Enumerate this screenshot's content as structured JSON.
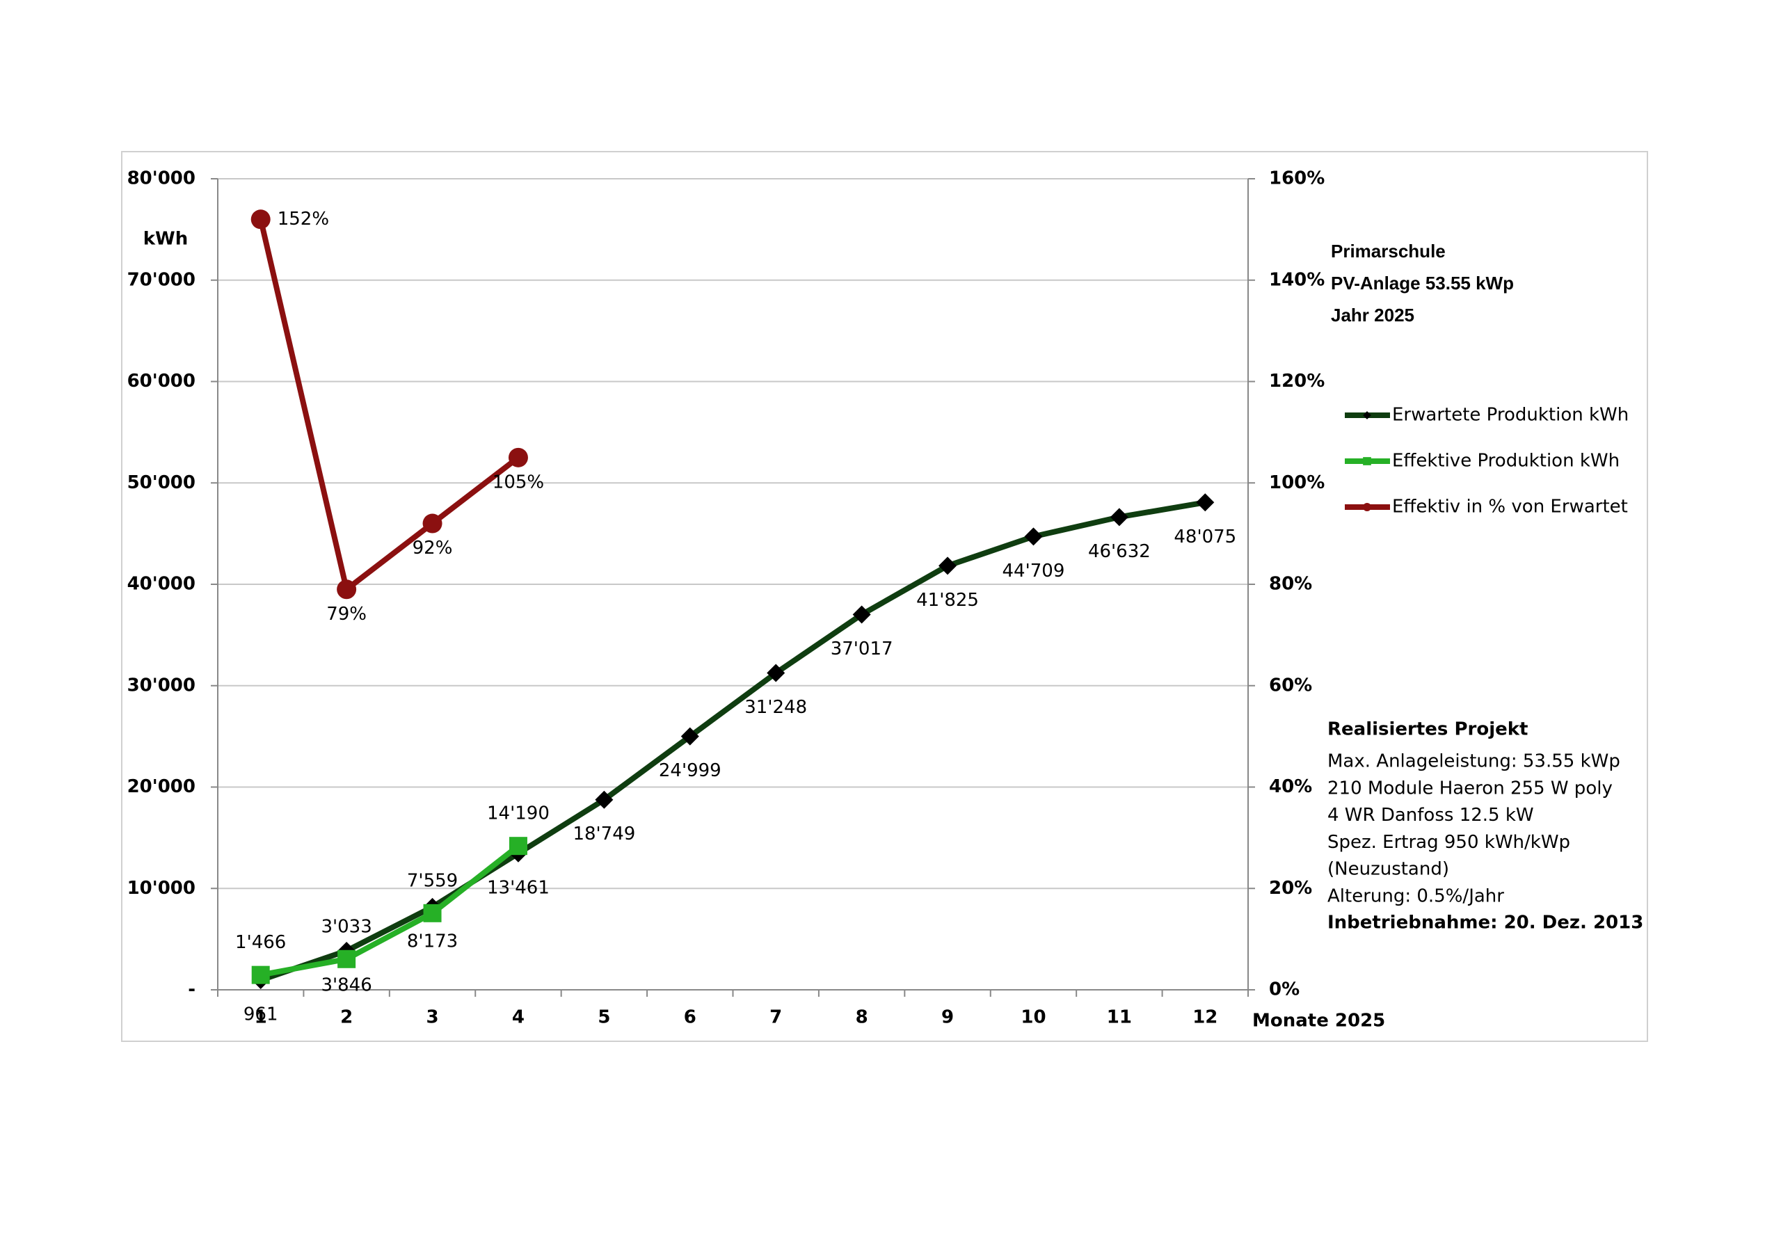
{
  "chart_data": {
    "type": "line",
    "title": [
      "Primarschule",
      "PV-Anlage 53.55 kWp",
      "Jahr 2025"
    ],
    "y_label": "kWh",
    "x_label": "Monate 2025",
    "categories": [
      1,
      2,
      3,
      4,
      5,
      6,
      7,
      8,
      9,
      10,
      11,
      12
    ],
    "series": [
      {
        "name": "Erwartete Produktion kWh",
        "color": "#0f3d10",
        "marker_color": "#000000",
        "marker": "diamond",
        "values": [
          961,
          3846,
          8173,
          13461,
          18749,
          24999,
          31248,
          37017,
          41825,
          44709,
          46632,
          48075
        ],
        "value_labels": [
          "961",
          "3'846",
          "8'173",
          "13'461",
          "18'749",
          "24'999",
          "31'248",
          "37'017",
          "41'825",
          "44'709",
          "46'632",
          "48'075"
        ]
      },
      {
        "name": "Effektive Produktion kWh",
        "color": "#26b026",
        "marker_color": "#26b026",
        "marker": "square",
        "values": [
          1466,
          3033,
          7559,
          14190,
          null,
          null,
          null,
          null,
          null,
          null,
          null,
          null
        ],
        "value_labels": [
          "1'466",
          "3'033",
          "7'559",
          "14'190",
          null,
          null,
          null,
          null,
          null,
          null,
          null,
          null
        ]
      },
      {
        "name": "Effektiv in % von Erwartet",
        "color": "#8b1010",
        "marker_color": "#8b1010",
        "marker": "circle",
        "axis": "y2",
        "values": [
          152,
          79,
          92,
          105,
          null,
          null,
          null,
          null,
          null,
          null,
          null,
          null
        ],
        "value_labels": [
          "152%",
          "79%",
          "92%",
          "105%",
          null,
          null,
          null,
          null,
          null,
          null,
          null,
          null
        ]
      }
    ],
    "ylim": [
      0,
      80000
    ],
    "yticks": [
      {
        "value": 0,
        "label": "-"
      },
      {
        "value": 10000,
        "label": "10'000"
      },
      {
        "value": 20000,
        "label": "20'000"
      },
      {
        "value": 30000,
        "label": "30'000"
      },
      {
        "value": 40000,
        "label": "40'000"
      },
      {
        "value": 50000,
        "label": "50'000"
      },
      {
        "value": 60000,
        "label": "60'000"
      },
      {
        "value": 70000,
        "label": "70'000"
      },
      {
        "value": 80000,
        "label": "80'000"
      }
    ],
    "y2lim": [
      0,
      160
    ],
    "y2ticks": [
      {
        "value": 0,
        "label": "0%"
      },
      {
        "value": 20,
        "label": "20%"
      },
      {
        "value": 40,
        "label": "40%"
      },
      {
        "value": 60,
        "label": "60%"
      },
      {
        "value": 80,
        "label": "80%"
      },
      {
        "value": 100,
        "label": "100%"
      },
      {
        "value": 120,
        "label": "120%"
      },
      {
        "value": 140,
        "label": "140%"
      },
      {
        "value": 160,
        "label": "160%"
      }
    ],
    "grid": true,
    "legend": "right",
    "info": {
      "heading": "Realisiertes Projekt",
      "lines": [
        "Max. Anlageleistung: 53.55 kWp",
        "210 Module Haeron 255 W poly",
        "4 WR Danfoss 12.5 kW",
        "Spez. Ertrag 950 kWh/kWp",
        "(Neuzustand)",
        "Alterung: 0.5%/Jahr"
      ],
      "footer": "Inbetriebnahme: 20. Dez. 2013"
    }
  }
}
